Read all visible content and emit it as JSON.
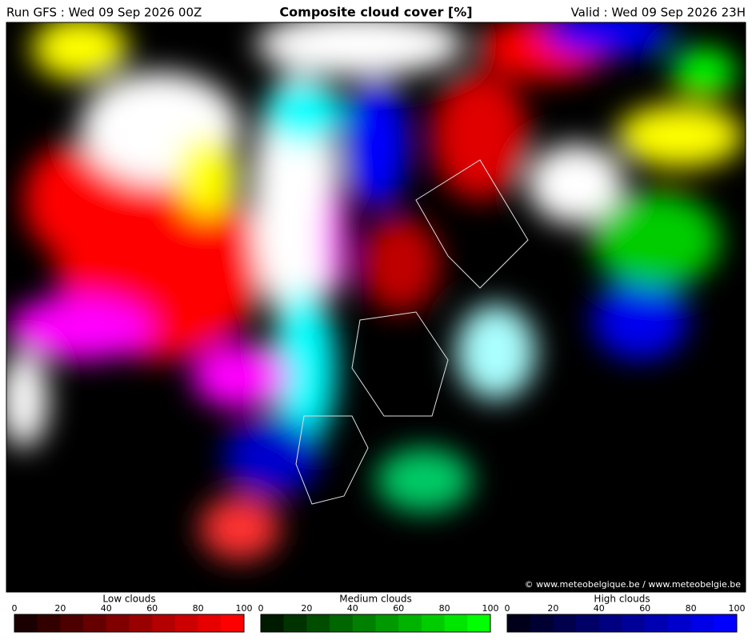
{
  "header": {
    "run": "Run GFS : Wed 09 Sep 2026 00Z",
    "title": "Composite cloud cover [%]",
    "valid": "Valid : Wed 09 Sep 2026 23H"
  },
  "map": {
    "credit": "© www.meteobelgique.be / www.meteobelgie.be"
  },
  "legends": [
    {
      "label": "Low clouds",
      "ticks": [
        0,
        20,
        40,
        60,
        80,
        100
      ],
      "colors": [
        "#1a0000",
        "#330000",
        "#4d0000",
        "#660000",
        "#800000",
        "#990000",
        "#b30000",
        "#cc0000",
        "#e60000",
        "#ff0000"
      ]
    },
    {
      "label": "Medium clouds",
      "ticks": [
        0,
        20,
        40,
        60,
        80,
        100
      ],
      "colors": [
        "#001a00",
        "#003300",
        "#004d00",
        "#006600",
        "#008000",
        "#009900",
        "#00b300",
        "#00cc00",
        "#00e600",
        "#00ff00"
      ]
    },
    {
      "label": "High clouds",
      "ticks": [
        0,
        20,
        40,
        60,
        80,
        100
      ],
      "colors": [
        "#00001a",
        "#000033",
        "#00004d",
        "#000066",
        "#000080",
        "#000099",
        "#0000b3",
        "#0000cc",
        "#0000e6",
        "#0000ff"
      ]
    }
  ]
}
